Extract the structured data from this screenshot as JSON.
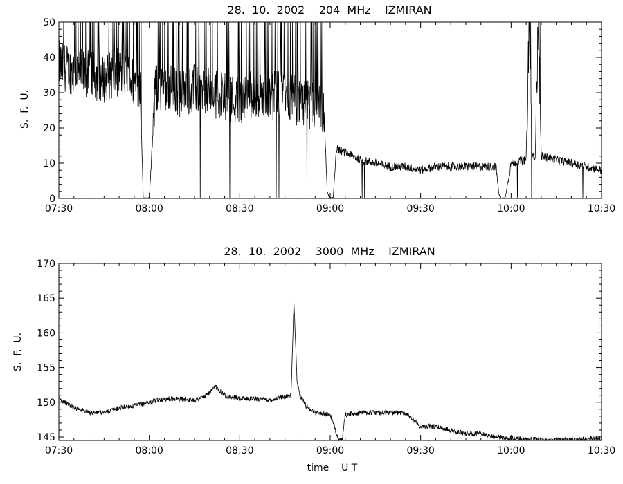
{
  "chart_data": [
    {
      "type": "line",
      "title": "28.  10.  2002    204  MHz    IZMIRAN",
      "xlabel": "",
      "ylabel": "S.  F.  U.",
      "xlim": [
        "07:30",
        "10:30"
      ],
      "ylim": [
        0,
        50
      ],
      "x_ticks": [
        "07:30",
        "08:00",
        "08:30",
        "09:00",
        "09:30",
        "10:00",
        "10:30"
      ],
      "y_ticks": [
        "0",
        "10",
        "20",
        "30",
        "40",
        "50"
      ],
      "grid": false,
      "series": [
        {
          "x": [
            "07:30",
            "07:35",
            "07:40",
            "07:45",
            "07:50",
            "07:55",
            "07:57",
            "07:58",
            "07:59",
            "08:00",
            "08:02",
            "08:05",
            "08:10",
            "08:15",
            "08:20",
            "08:25",
            "08:30",
            "08:35",
            "08:40",
            "08:45",
            "08:50",
            "08:55",
            "08:58",
            "08:59",
            "09:00",
            "09:01",
            "09:02",
            "09:05",
            "09:10",
            "09:15",
            "09:20",
            "09:25",
            "09:30",
            "09:35",
            "09:40",
            "09:45",
            "09:50",
            "09:55",
            "09:56",
            "09:57",
            "09:58",
            "10:00",
            "10:05",
            "10:06",
            "10:07",
            "10:08",
            "10:09",
            "10:10",
            "10:15",
            "10:20",
            "10:25",
            "10:30"
          ],
          "values": [
            38,
            36,
            35,
            34,
            36,
            33,
            31,
            0,
            0,
            0,
            31,
            32,
            30,
            31,
            30,
            29,
            28,
            30,
            29,
            30,
            27,
            26,
            24,
            2,
            0,
            0,
            14,
            13,
            11,
            10,
            9,
            9,
            8,
            9,
            9,
            9,
            9,
            9,
            1,
            0,
            0,
            10,
            11,
            50,
            12,
            11,
            50,
            12,
            11,
            10,
            9,
            8
          ]
        }
      ]
    },
    {
      "type": "line",
      "title": "28.  10.  2002    3000  MHz    IZMIRAN",
      "xlabel": "time    U T",
      "ylabel": "S.  F.  U.",
      "xlim": [
        "07:30",
        "10:30"
      ],
      "ylim": [
        144.5,
        170
      ],
      "x_ticks": [
        "07:30",
        "08:00",
        "08:30",
        "09:00",
        "09:30",
        "10:00",
        "10:30"
      ],
      "y_ticks": [
        "145",
        "150",
        "155",
        "160",
        "165",
        "170"
      ],
      "grid": false,
      "series": [
        {
          "x": [
            "07:30",
            "07:35",
            "07:40",
            "07:45",
            "07:50",
            "07:55",
            "08:00",
            "08:05",
            "08:10",
            "08:15",
            "08:19",
            "08:22",
            "08:25",
            "08:30",
            "08:35",
            "08:40",
            "08:45",
            "08:47",
            "08:48",
            "08:49",
            "08:50",
            "08:52",
            "08:55",
            "09:00",
            "09:03",
            "09:04",
            "09:05",
            "09:10",
            "09:15",
            "09:20",
            "09:25",
            "09:30",
            "09:35",
            "09:40",
            "09:45",
            "09:50",
            "09:55",
            "10:00",
            "10:10",
            "10:20",
            "10:30"
          ],
          "values": [
            150.5,
            149.3,
            148.5,
            148.5,
            149.2,
            149.5,
            150,
            150.5,
            150.5,
            150.3,
            151,
            152.3,
            151,
            150.5,
            150.5,
            150.3,
            150.8,
            151,
            164.5,
            153,
            151,
            149.5,
            148.5,
            148.2,
            144.5,
            144.5,
            148.2,
            148.5,
            148.5,
            148.5,
            148.5,
            146.5,
            146.5,
            146,
            145.5,
            145.5,
            145,
            144.8,
            144.6,
            144.6,
            144.8
          ]
        }
      ]
    }
  ]
}
